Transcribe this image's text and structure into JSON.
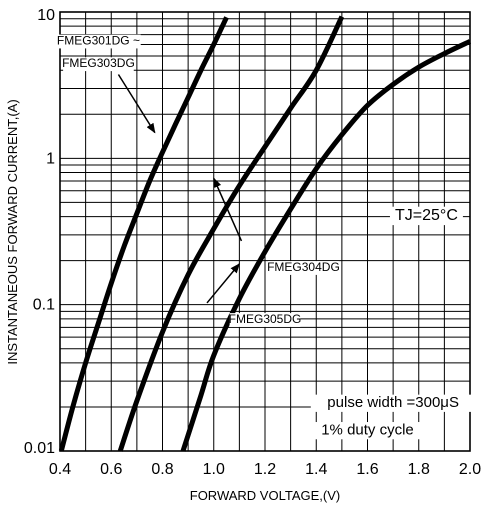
{
  "chart_data": {
    "type": "line",
    "title": "",
    "xlabel": "FORWARD VOLTAGE,(V)",
    "ylabel": "INSTANTANEOUS FORWARD CURRENT,(A)",
    "xlim": [
      0.4,
      2.0
    ],
    "ylim": [
      0.01,
      10
    ],
    "yscale": "log",
    "grid": true,
    "x_ticks": [
      0.4,
      0.6,
      0.8,
      1.0,
      1.2,
      1.4,
      1.6,
      1.8,
      2.0
    ],
    "x_tick_labels": [
      "0.4",
      "0.6",
      "0.8",
      "1.0",
      "1.2",
      "1.4",
      "1.6",
      "1.8",
      "2.0"
    ],
    "y_ticks": [
      0.01,
      0.1,
      1,
      10
    ],
    "y_tick_labels": [
      "0.01",
      "0.1",
      "1",
      "10"
    ],
    "series": [
      {
        "name": "FMEG301DG ~ FMEG303DG",
        "points": [
          [
            0.405,
            0.01
          ],
          [
            0.45,
            0.02
          ],
          [
            0.5,
            0.04
          ],
          [
            0.55,
            0.075
          ],
          [
            0.6,
            0.14
          ],
          [
            0.65,
            0.25
          ],
          [
            0.7,
            0.42
          ],
          [
            0.75,
            0.7
          ],
          [
            0.8,
            1.1
          ],
          [
            0.85,
            1.7
          ],
          [
            0.9,
            2.6
          ],
          [
            0.95,
            4.0
          ],
          [
            1.0,
            6.0
          ],
          [
            1.05,
            9.2
          ]
        ]
      },
      {
        "name": "FMEG304DG",
        "points": [
          [
            0.635,
            0.01
          ],
          [
            0.7,
            0.022
          ],
          [
            0.8,
            0.065
          ],
          [
            0.9,
            0.16
          ],
          [
            1.0,
            0.33
          ],
          [
            1.1,
            0.65
          ],
          [
            1.2,
            1.2
          ],
          [
            1.3,
            2.2
          ],
          [
            1.4,
            4.0
          ],
          [
            1.5,
            9.3
          ]
        ]
      },
      {
        "name": "FMEG305DG",
        "points": [
          [
            0.88,
            0.01
          ],
          [
            0.95,
            0.024
          ],
          [
            1.0,
            0.045
          ],
          [
            1.1,
            0.11
          ],
          [
            1.2,
            0.23
          ],
          [
            1.3,
            0.45
          ],
          [
            1.4,
            0.85
          ],
          [
            1.5,
            1.45
          ],
          [
            1.6,
            2.3
          ],
          [
            1.7,
            3.2
          ],
          [
            1.8,
            4.2
          ],
          [
            1.9,
            5.2
          ],
          [
            2.0,
            6.3
          ]
        ]
      }
    ],
    "annotations": [
      {
        "text": "FMEG301DG ~",
        "x": 0.55,
        "y": 6.0,
        "arrow_to": [
          0.77,
          1.5
        ]
      },
      {
        "text": "FMEG303DG",
        "x": 0.55,
        "y": 4.2
      },
      {
        "text": "FMEG304DG",
        "x": 1.35,
        "y": 0.17,
        "arrow_to": [
          1.0,
          0.73
        ]
      },
      {
        "text": "FMEG305DG",
        "x": 1.2,
        "y": 0.075,
        "arrow_to": [
          1.1,
          0.19
        ]
      },
      {
        "text": "TJ=25°C",
        "x": 1.83,
        "y": 0.38
      },
      {
        "text": "pulse width =300μS",
        "x": 1.7,
        "y": 0.02
      },
      {
        "text": "1% duty cycle",
        "x": 1.6,
        "y": 0.013
      }
    ]
  }
}
